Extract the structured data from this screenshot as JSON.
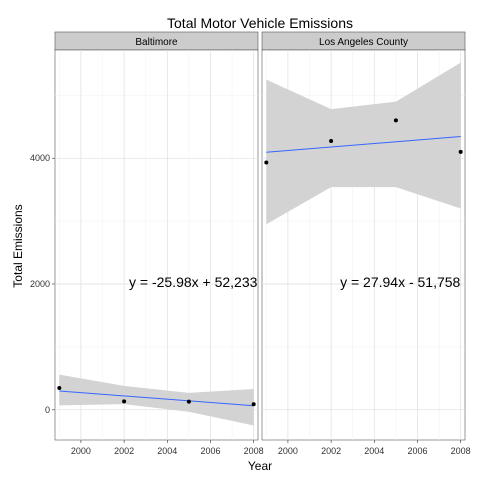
{
  "chart_data": {
    "type": "scatter",
    "title": "Total Motor Vehicle Emissions",
    "xlabel": "Year",
    "ylabel": "Total Emissions",
    "xlim": [
      1998.8,
      2008.2
    ],
    "ylim": [
      -480,
      5720
    ],
    "x_ticks": [
      2000,
      2002,
      2004,
      2006,
      2008
    ],
    "y_ticks": [
      0,
      2000,
      4000
    ],
    "grid": true,
    "facets": [
      {
        "name": "Baltimore",
        "x": [
          1999,
          2002,
          2005,
          2008
        ],
        "y": [
          346.82,
          134.31,
          130.43,
          88.28
        ],
        "fit": {
          "slope": -25.98,
          "intercept": 52233
        },
        "ci_lower": [
          70,
          90,
          -30,
          -250
        ],
        "ci_upper": [
          560,
          380,
          270,
          330
        ],
        "equation": "y = -25.98x + 52,233"
      },
      {
        "name": "Los Angeles County",
        "x": [
          1999,
          2002,
          2005,
          2008
        ],
        "y": [
          3931.12,
          4274.03,
          4601.41,
          4101.32
        ],
        "fit": {
          "slope": 27.94,
          "intercept": -51758
        },
        "ci_lower": [
          2950,
          3540,
          3540,
          3200
        ],
        "ci_upper": [
          5250,
          4780,
          4900,
          5520
        ],
        "equation": "y = 27.94x - 51,758"
      }
    ],
    "colors": {
      "fit_line": "#3366ff",
      "ci_band": "#d3d3d3",
      "points": "#000000",
      "strip": "#cccccc"
    }
  }
}
